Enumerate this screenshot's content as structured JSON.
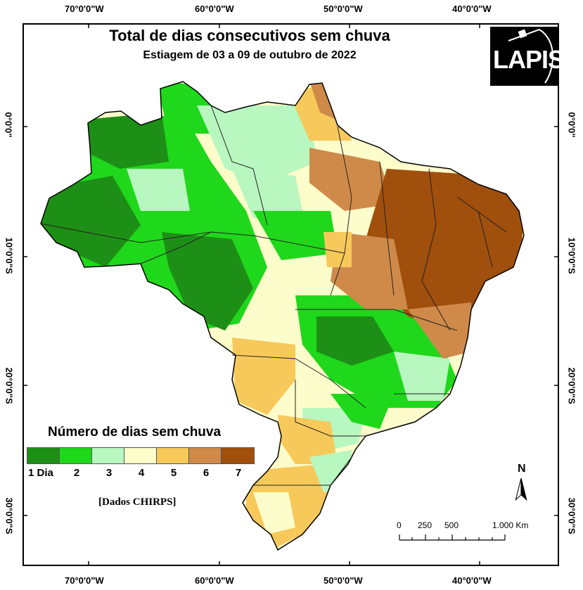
{
  "map": {
    "title": "Total de dias consecutivos sem chuva",
    "subtitle": "Estiagem de 03 a 09 de outubro de 2022",
    "logo_text": "LAPIS",
    "logo_icon": "satellite-icon"
  },
  "graticule": {
    "longitude_labels": [
      "70°0'0\"W",
      "60°0'0\"W",
      "50°0'0\"W",
      "40°0'0\"W"
    ],
    "latitude_labels": [
      "0°0'0\"",
      "10°0'0\"S",
      "20°0'0\"S",
      "30°0'0\"S"
    ]
  },
  "legend": {
    "title": "Número de dias sem chuva",
    "classes": [
      {
        "label": "1 Dia",
        "color": "#1e8f16"
      },
      {
        "label": "2",
        "color": "#1fd81b"
      },
      {
        "label": "3",
        "color": "#b9f7c0"
      },
      {
        "label": "4",
        "color": "#fdfccb"
      },
      {
        "label": "5",
        "color": "#f7c95a"
      },
      {
        "label": "6",
        "color": "#cf8a4a"
      },
      {
        "label": "7",
        "color": "#a04f0d"
      }
    ]
  },
  "source": "[Dados CHIRPS]",
  "north_arrow": {
    "label": "N"
  },
  "scale_bar": {
    "labels": [
      "0",
      "250",
      "500",
      "1.000 Km"
    ]
  }
}
